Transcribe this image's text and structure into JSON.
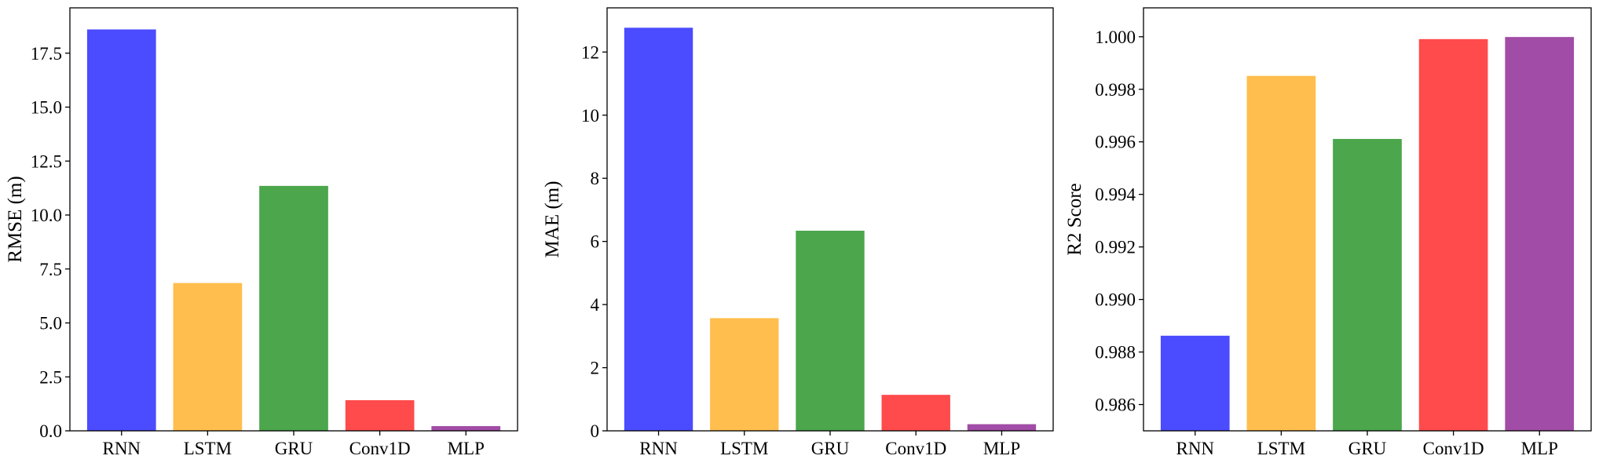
{
  "chart_data": [
    {
      "type": "bar",
      "title": "",
      "xlabel": "",
      "ylabel": "RMSE (m)",
      "categories": [
        "RNN",
        "LSTM",
        "GRU",
        "Conv1D",
        "MLP"
      ],
      "values": [
        18.6,
        6.85,
        11.35,
        1.42,
        0.22
      ],
      "colors": [
        "#4b4bff",
        "#ffbe4d",
        "#4ca64c",
        "#ff4b4b",
        "#a14ca6"
      ],
      "ylim": [
        0,
        19.6
      ],
      "yticks": [
        0,
        2.5,
        5,
        7.5,
        10,
        12.5,
        15,
        17.5
      ],
      "ytick_labels": [
        "0.0",
        "2.5",
        "5.0",
        "7.5",
        "10.0",
        "12.5",
        "15.0",
        "17.5"
      ],
      "grid": false
    },
    {
      "type": "bar",
      "title": "",
      "xlabel": "",
      "ylabel": "MAE (m)",
      "categories": [
        "RNN",
        "LSTM",
        "GRU",
        "Conv1D",
        "MLP"
      ],
      "values": [
        12.77,
        3.57,
        6.34,
        1.14,
        0.21
      ],
      "colors": [
        "#4b4bff",
        "#ffbe4d",
        "#4ca64c",
        "#ff4b4b",
        "#a14ca6"
      ],
      "ylim": [
        0,
        13.4
      ],
      "yticks": [
        0,
        2,
        4,
        6,
        8,
        10,
        12
      ],
      "ytick_labels": [
        "0",
        "2",
        "4",
        "6",
        "8",
        "10",
        "12"
      ],
      "grid": false
    },
    {
      "type": "bar",
      "title": "",
      "xlabel": "",
      "ylabel": "R2 Score",
      "categories": [
        "RNN",
        "LSTM",
        "GRU",
        "Conv1D",
        "MLP"
      ],
      "values": [
        0.98862,
        0.99851,
        0.99611,
        0.99991,
        0.99999
      ],
      "colors": [
        "#4b4bff",
        "#ffbe4d",
        "#4ca64c",
        "#ff4b4b",
        "#a14ca6"
      ],
      "ylim": [
        0.985,
        1.0011
      ],
      "yticks": [
        0.986,
        0.988,
        0.99,
        0.992,
        0.994,
        0.996,
        0.998,
        1.0
      ],
      "ytick_labels": [
        "0.986",
        "0.988",
        "0.990",
        "0.992",
        "0.994",
        "0.996",
        "0.998",
        "1.000"
      ],
      "grid": false
    }
  ]
}
